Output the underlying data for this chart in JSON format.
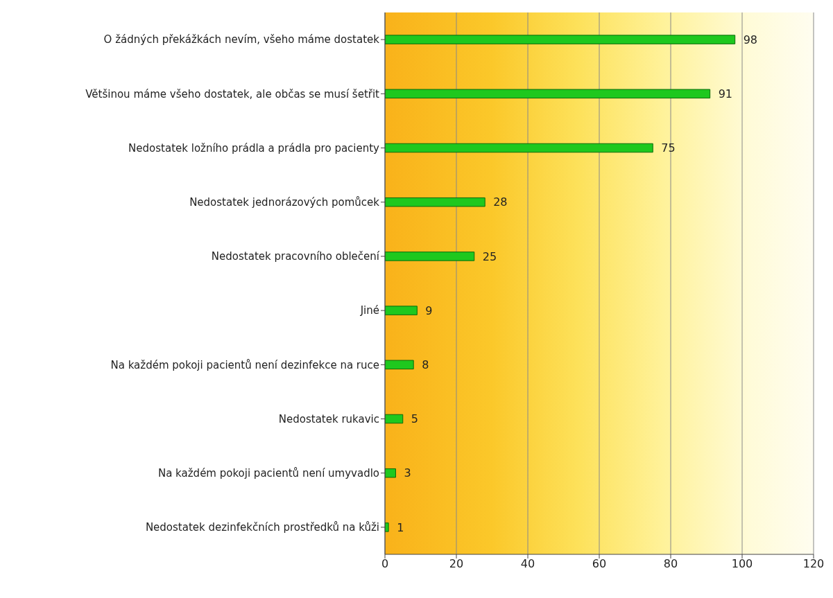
{
  "chart_data": {
    "type": "bar",
    "orientation": "horizontal",
    "categories": [
      "O žádných překážkách nevím, všeho máme dostatek",
      "Většinou máme všeho dostatek, ale občas se musí šetřit",
      "Nedostatek ložního prádla a prádla pro pacienty",
      "Nedostatek jednorázových pomůcek",
      "Nedostatek pracovního oblečení",
      "Jiné",
      "Na každém pokoji pacientů není dezinfekce na ruce",
      "Nedostatek rukavic",
      "Na každém pokoji pacientů není umyvadlo",
      "Nedostatek dezinfekčních prostředků na kůži"
    ],
    "values": [
      98,
      91,
      75,
      28,
      25,
      9,
      8,
      5,
      3,
      1
    ],
    "color": "#1ec81e",
    "xlim": [
      0,
      120
    ],
    "xticks": [
      0,
      20,
      40,
      60,
      80,
      100,
      120
    ],
    "grid": "x",
    "data_labels": true
  }
}
